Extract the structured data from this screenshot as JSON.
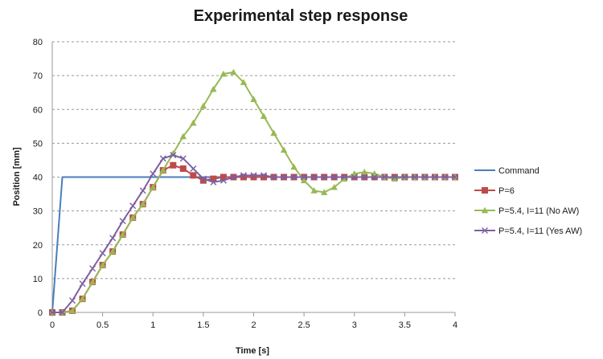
{
  "chart_data": {
    "type": "line",
    "title": "Experimental step response",
    "xlabel": "Time [s]",
    "ylabel": "Position [mm]",
    "xlim": [
      0,
      4
    ],
    "ylim": [
      0,
      80
    ],
    "x_ticks": [
      "0",
      "0.5",
      "1",
      "1.5",
      "2",
      "2.5",
      "3",
      "3.5",
      "4"
    ],
    "y_ticks": [
      "0",
      "10",
      "20",
      "30",
      "40",
      "50",
      "60",
      "70",
      "80"
    ],
    "grid": "horizontal dashed",
    "legend_position": "right",
    "series": [
      {
        "name": "Command",
        "color": "#4a7ebb",
        "marker": "none",
        "x": [
          0,
          0.1,
          4
        ],
        "y": [
          0,
          40,
          40
        ]
      },
      {
        "name": "P=6",
        "color": "#be4b48",
        "marker": "square",
        "x": [
          0,
          0.1,
          0.2,
          0.3,
          0.4,
          0.5,
          0.6,
          0.7,
          0.8,
          0.9,
          1.0,
          1.1,
          1.2,
          1.3,
          1.4,
          1.5,
          1.6,
          1.7,
          1.8,
          1.9,
          2.0,
          2.1,
          2.2,
          2.3,
          2.4,
          2.5,
          2.6,
          2.7,
          2.8,
          2.9,
          3.0,
          3.1,
          3.2,
          3.3,
          3.4,
          3.5,
          3.6,
          3.7,
          3.8,
          3.9,
          4.0
        ],
        "y": [
          0,
          0,
          0.5,
          4,
          9,
          14,
          18,
          23,
          28,
          32,
          37,
          42,
          43.5,
          42.5,
          40.5,
          39,
          39.5,
          40,
          40,
          40,
          40,
          40,
          40,
          40,
          40,
          40,
          40,
          40,
          40,
          40,
          40,
          40,
          40,
          40,
          40,
          40,
          40,
          40,
          40,
          40,
          40
        ]
      },
      {
        "name": "P=5.4, I=11 (No AW)",
        "color": "#98b954",
        "marker": "triangle",
        "x": [
          0,
          0.1,
          0.2,
          0.3,
          0.4,
          0.5,
          0.6,
          0.7,
          0.8,
          0.9,
          1.0,
          1.1,
          1.2,
          1.3,
          1.4,
          1.5,
          1.6,
          1.7,
          1.8,
          1.9,
          2.0,
          2.1,
          2.2,
          2.3,
          2.4,
          2.5,
          2.6,
          2.7,
          2.8,
          2.9,
          3.0,
          3.1,
          3.2,
          3.3,
          3.4,
          3.5,
          3.6,
          3.7,
          3.8,
          3.9,
          4.0
        ],
        "y": [
          0,
          0,
          0.5,
          4,
          9,
          14,
          18,
          23,
          28,
          32,
          37,
          42,
          47,
          52,
          56,
          61,
          66,
          70.5,
          71,
          68,
          63,
          58,
          53,
          48,
          43,
          39,
          36,
          35.5,
          37,
          39.5,
          41,
          41.5,
          41,
          40,
          39.5,
          40,
          40,
          40,
          40,
          40,
          40
        ]
      },
      {
        "name": "P=5.4, I=11 (Yes AW)",
        "color": "#7d60a0",
        "marker": "x",
        "x": [
          0,
          0.1,
          0.2,
          0.3,
          0.4,
          0.5,
          0.6,
          0.7,
          0.8,
          0.9,
          1.0,
          1.1,
          1.2,
          1.3,
          1.4,
          1.5,
          1.6,
          1.7,
          1.8,
          1.9,
          2.0,
          2.1,
          2.2,
          2.3,
          2.4,
          2.5,
          2.6,
          2.7,
          2.8,
          2.9,
          3.0,
          3.1,
          3.2,
          3.3,
          3.4,
          3.5,
          3.6,
          3.7,
          3.8,
          3.9,
          4.0
        ],
        "y": [
          0,
          0,
          3.5,
          8.5,
          13,
          17.5,
          22,
          27,
          31.5,
          36,
          41,
          45.5,
          46.5,
          45.5,
          42.5,
          39.5,
          38.5,
          39,
          40,
          40.5,
          40.5,
          40.5,
          40,
          40,
          40,
          40,
          40,
          40,
          40,
          40,
          40,
          40,
          40,
          40,
          40,
          40,
          40,
          40,
          40,
          40,
          40
        ]
      }
    ]
  }
}
